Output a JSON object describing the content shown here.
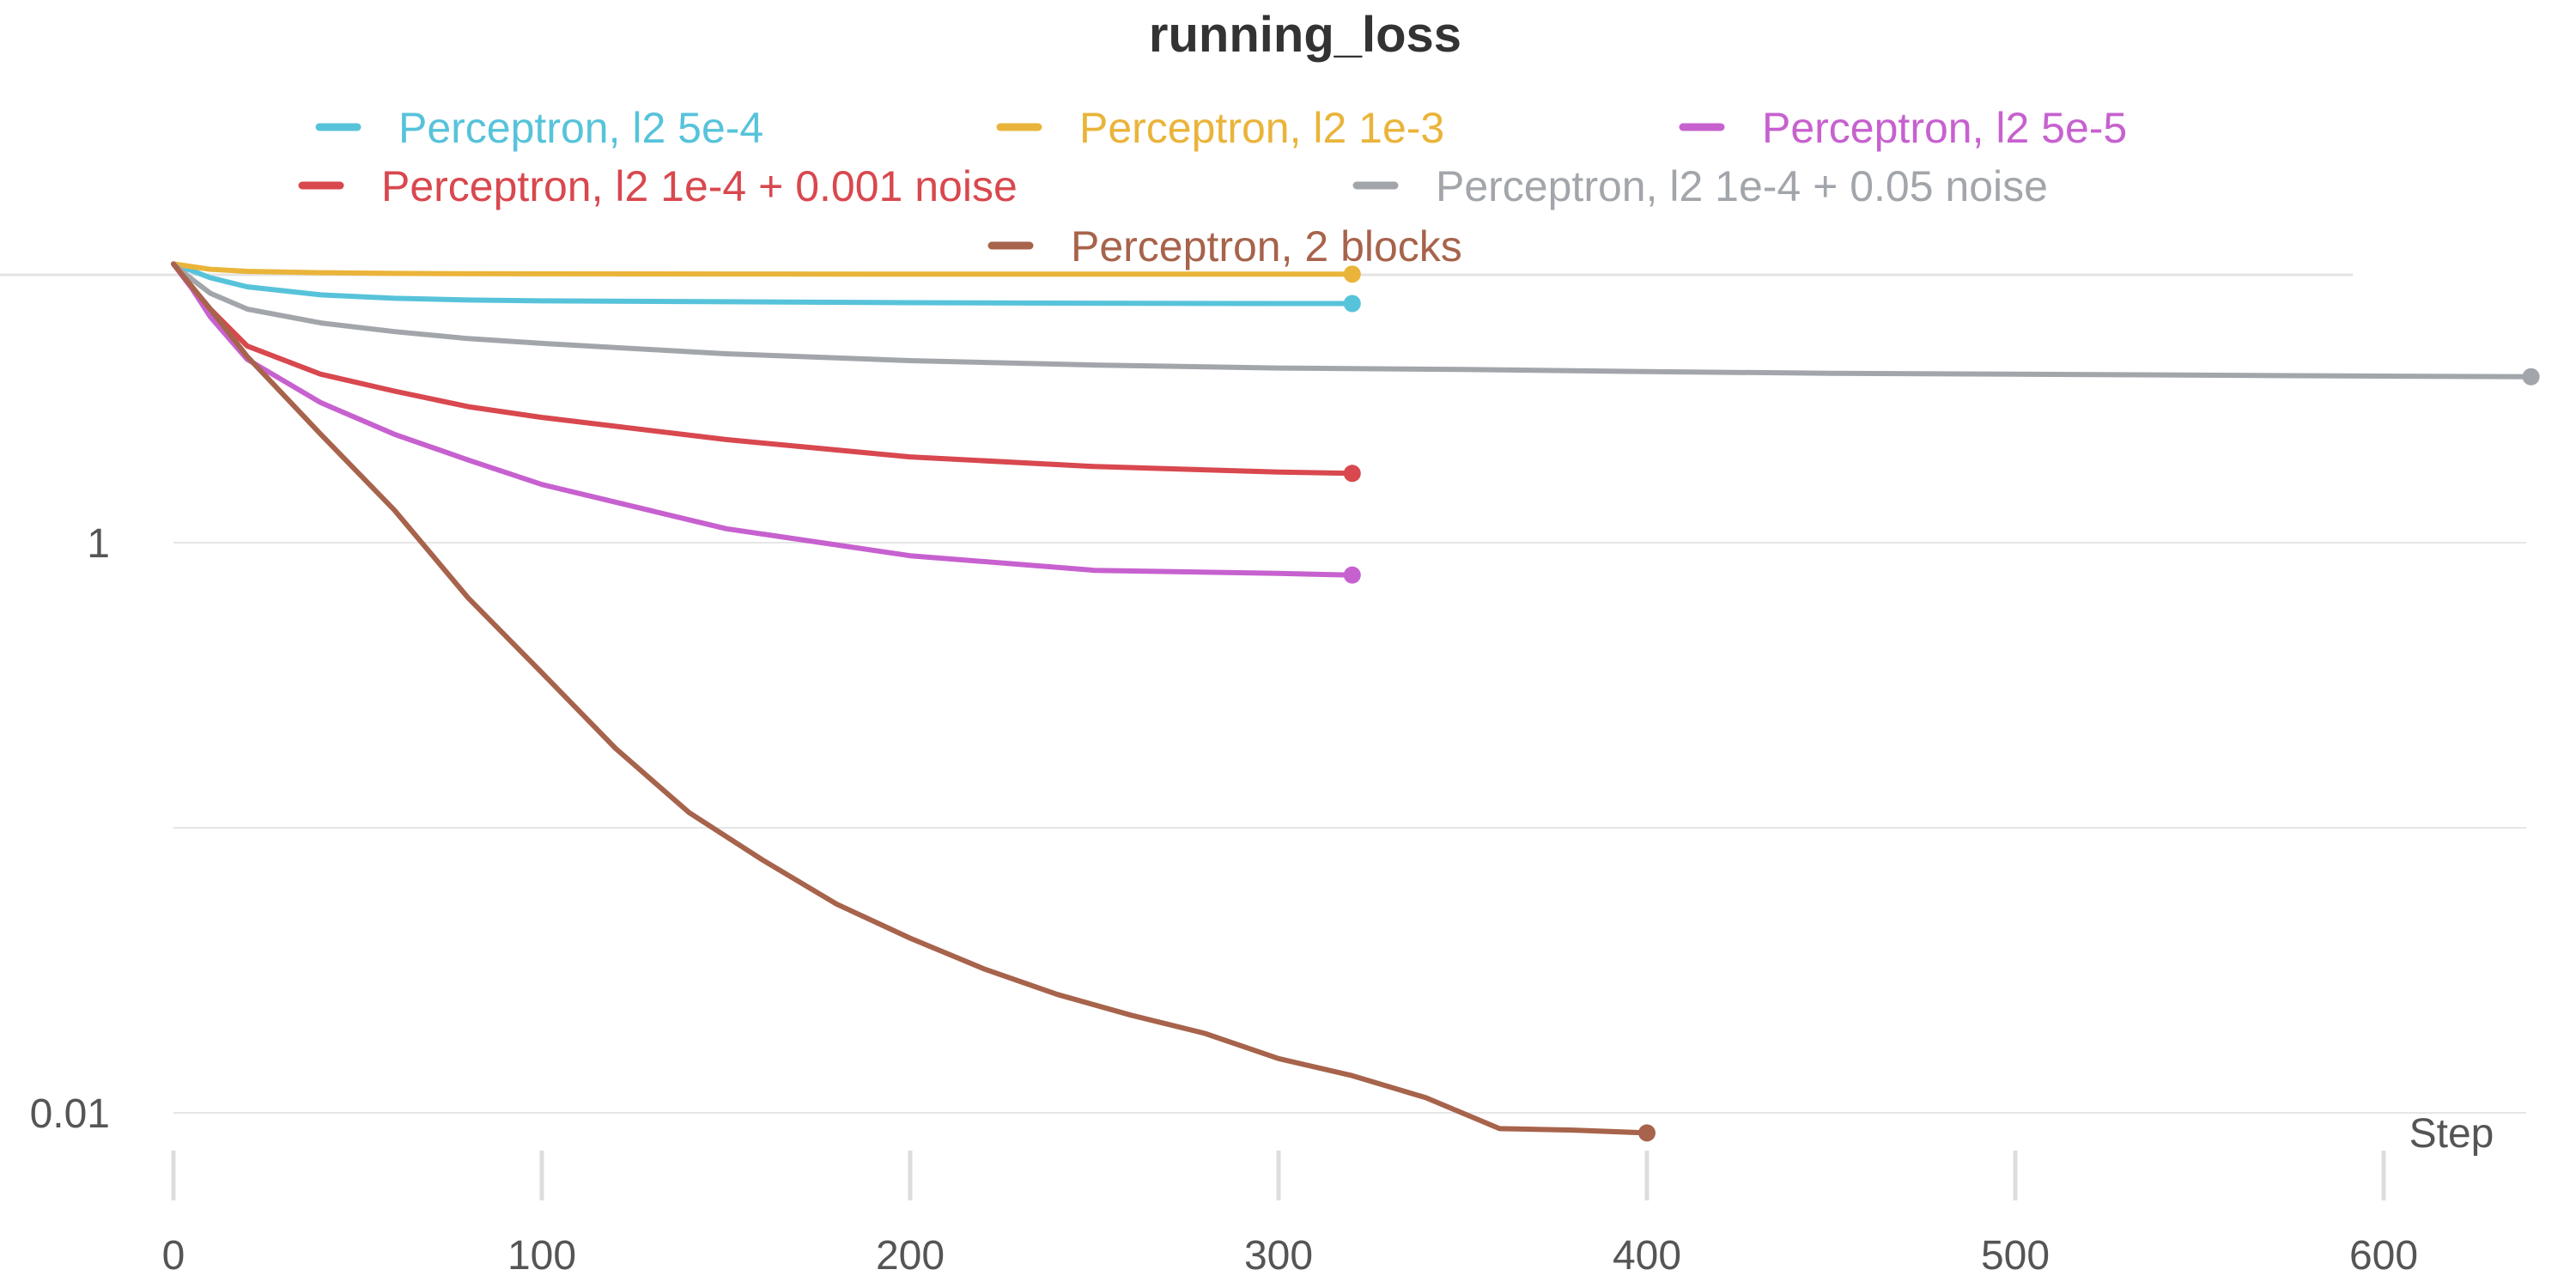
{
  "chart_data": {
    "type": "line",
    "title": "running_loss",
    "xlabel": "Step",
    "ylabel": "",
    "yscale": "log",
    "xlim": [
      0,
      640
    ],
    "ylim": [
      0.0055,
      14.5
    ],
    "x_ticks": [
      0,
      100,
      200,
      300,
      400,
      500,
      600
    ],
    "y_ticks": [
      {
        "value": 1,
        "label": "1"
      },
      {
        "value": 0.1,
        "label": ""
      },
      {
        "value": 0.01,
        "label": "0.01"
      }
    ],
    "grid": true,
    "legend_position": "top",
    "series": [
      {
        "name": "Perceptron, l2 5e-4",
        "color": "#57c3da",
        "x": [
          0,
          5,
          10,
          20,
          40,
          60,
          80,
          100,
          150,
          200,
          250,
          300,
          320
        ],
        "y": [
          9.5,
          9.0,
          8.5,
          7.9,
          7.4,
          7.2,
          7.1,
          7.05,
          7.0,
          6.95,
          6.92,
          6.9,
          6.9
        ]
      },
      {
        "name": "Perceptron, l2 1e-3",
        "color": "#eab43a",
        "x": [
          0,
          5,
          10,
          20,
          40,
          60,
          80,
          100,
          150,
          200,
          250,
          300,
          320
        ],
        "y": [
          9.5,
          9.3,
          9.1,
          8.95,
          8.85,
          8.8,
          8.78,
          8.77,
          8.76,
          8.75,
          8.75,
          8.75,
          8.75
        ]
      },
      {
        "name": "Perceptron, l2 5e-5",
        "color": "#c761cf",
        "x": [
          0,
          5,
          10,
          20,
          40,
          60,
          80,
          100,
          150,
          200,
          250,
          300,
          320
        ],
        "y": [
          9.5,
          7.8,
          6.2,
          4.4,
          3.1,
          2.4,
          1.95,
          1.6,
          1.12,
          0.9,
          0.8,
          0.78,
          0.77
        ]
      },
      {
        "name": "Perceptron, l2 1e-4 + 0.001 noise",
        "color": "#d8484e",
        "x": [
          0,
          5,
          10,
          20,
          40,
          60,
          80,
          100,
          150,
          200,
          250,
          300,
          320
        ],
        "y": [
          9.5,
          7.9,
          6.6,
          4.9,
          3.9,
          3.4,
          3.0,
          2.75,
          2.3,
          2.0,
          1.85,
          1.77,
          1.75
        ]
      },
      {
        "name": "Perceptron, l2 1e-4 + 0.05 noise",
        "color": "#a2a6ab",
        "x": [
          0,
          5,
          10,
          20,
          40,
          60,
          80,
          100,
          150,
          200,
          250,
          300,
          350,
          400,
          450,
          500,
          550,
          600,
          640
        ],
        "y": [
          9.5,
          8.4,
          7.5,
          6.6,
          5.9,
          5.5,
          5.2,
          5.0,
          4.6,
          4.35,
          4.2,
          4.1,
          4.05,
          3.98,
          3.93,
          3.9,
          3.87,
          3.84,
          3.82
        ]
      },
      {
        "name": "Perceptron, 2 blocks",
        "color": "#a7634b",
        "x": [
          0,
          10,
          20,
          40,
          60,
          80,
          100,
          120,
          140,
          160,
          180,
          200,
          220,
          240,
          260,
          280,
          300,
          320,
          340,
          360,
          380,
          400
        ],
        "y": [
          9.5,
          6.6,
          4.5,
          2.4,
          1.3,
          0.64,
          0.35,
          0.19,
          0.113,
          0.077,
          0.054,
          0.041,
          0.032,
          0.026,
          0.022,
          0.019,
          0.0155,
          0.0135,
          0.0113,
          0.0088,
          0.0087,
          0.0085
        ]
      }
    ]
  }
}
